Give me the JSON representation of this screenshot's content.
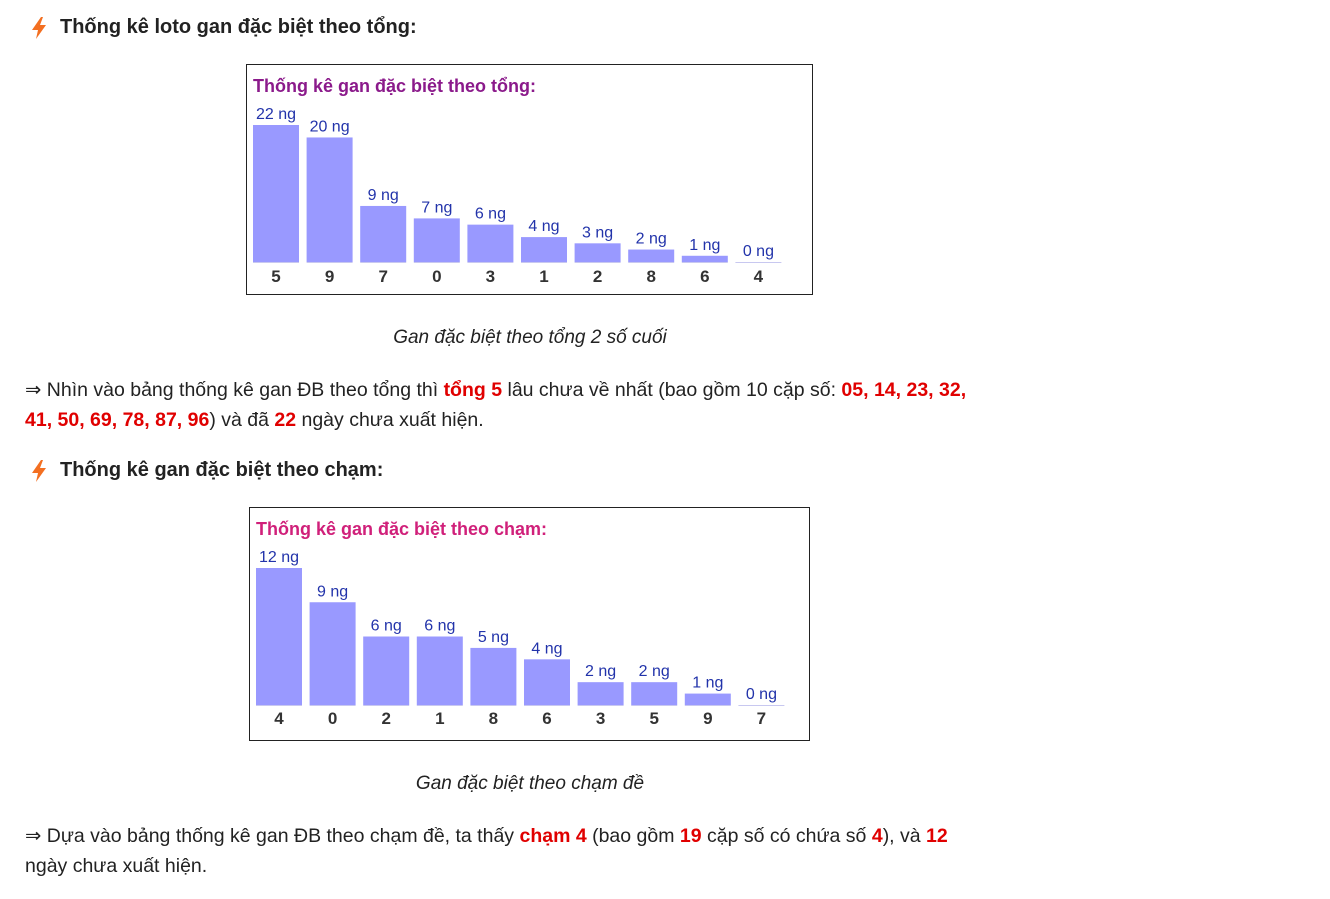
{
  "section1": {
    "heading": "Thống kê loto gan đặc biệt theo tổng:",
    "caption": "Gan đặc biệt theo tổng 2 số cuối",
    "para": {
      "arrow": "⇒",
      "t1": " Nhìn vào bảng thống kê gan ĐB theo tổng thì ",
      "h1": "tổng 5",
      "t2": " lâu chưa về nhất (bao gồm 10 cặp số: ",
      "h2": "05, 14, 23, 32,",
      "h3": "41, 50, 69, 78, 87, 96",
      "t3": ") và đã ",
      "h4": "22",
      "t4": " ngày chưa xuất hiện."
    }
  },
  "section2": {
    "heading": "Thống kê gan đặc biệt theo chạm:",
    "caption": "Gan đặc biệt theo chạm đề",
    "para": {
      "arrow": "⇒",
      "t1": " Dựa vào bảng thống kê gan ĐB theo chạm đề, ta thấy ",
      "h1": "chạm 4",
      "t2": " (bao gồm ",
      "h2": "19",
      "t3": " cặp số có chứa số ",
      "h3": "4",
      "t4": "), và ",
      "h4": "12",
      "t5": "ngày chưa xuất hiện."
    }
  },
  "colors": {
    "bar": "#9999ff",
    "title1": "#8b1a8b",
    "title2": "#d0207a",
    "value_label": "#2233aa",
    "icon": "#f36f21",
    "highlight": "#e00000"
  },
  "icon": "lightning-bolt-icon",
  "chart_data": [
    {
      "type": "bar",
      "title": "Thống kê gan đặc biệt theo tổng:",
      "categories": [
        "5",
        "9",
        "7",
        "0",
        "3",
        "1",
        "2",
        "8",
        "6",
        "4"
      ],
      "values": [
        22,
        20,
        9,
        7,
        6,
        4,
        3,
        2,
        1,
        0
      ],
      "value_labels": [
        "22 ng",
        "20 ng",
        "9 ng",
        "7 ng",
        "6 ng",
        "4 ng",
        "3 ng",
        "2 ng",
        "1 ng",
        "0 ng"
      ],
      "xlabel": "",
      "ylabel": "",
      "ylim": [
        0,
        22
      ],
      "grid": false,
      "legend": "none"
    },
    {
      "type": "bar",
      "title": "Thống kê gan đặc biệt theo chạm:",
      "categories": [
        "4",
        "0",
        "2",
        "1",
        "8",
        "6",
        "3",
        "5",
        "9",
        "7"
      ],
      "values": [
        12,
        9,
        6,
        6,
        5,
        4,
        2,
        2,
        1,
        0
      ],
      "value_labels": [
        "12 ng",
        "9 ng",
        "6 ng",
        "6 ng",
        "5 ng",
        "4 ng",
        "2 ng",
        "2 ng",
        "1 ng",
        "0 ng"
      ],
      "xlabel": "",
      "ylabel": "",
      "ylim": [
        0,
        12
      ],
      "grid": false,
      "legend": "none"
    }
  ]
}
